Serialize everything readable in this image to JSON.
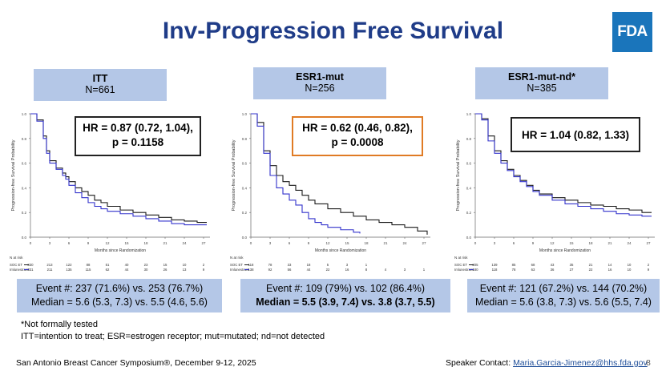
{
  "slide": {
    "title": "Inv-Progression Free Survival",
    "logo_text": "FDA",
    "note1": "*Not formally tested",
    "note2": "ITT=intention to treat; ESR=estrogen receptor; mut=mutated; nd=not detected",
    "footer_left": "San Antonio Breast Cancer Symposium®, December 9-12, 2025",
    "footer_contact_label": "Speaker Contact:",
    "footer_contact_email": "Maria.Garcia-Jimenez@hhs.fda.gov",
    "page_number": "8"
  },
  "panels": [
    {
      "name": "ITT",
      "n_label": "N=661",
      "hr_line1": "HR = 0.87 (0.72, 1.04),",
      "hr_line2": "p = 0.1158",
      "event_line1": "Event #: 237 (71.6%) vs. 253 (76.7%)",
      "event_line2": "Median = 5.6 (5.3, 7.3) vs. 5.5 (4.6, 5.6)"
    },
    {
      "name": "ESR1-mut",
      "n_label": "N=256",
      "hr_line1": "HR = 0.62 (0.46, 0.82),",
      "hr_line2": "p = 0.0008",
      "event_line1": "Event #: 109 (79%) vs. 102 (86.4%)",
      "event_line2": "Median = 5.5 (3.9, 7.4) vs. 3.8 (3.7, 5.5)"
    },
    {
      "name": "ESR1-mut-nd*",
      "n_label": "N=385",
      "hr_line1": "HR = 1.04 (0.82, 1.33)",
      "hr_line2": "",
      "event_line1": "Event #: 121 (67.2%) vs. 144 (70.2%)",
      "event_line2": "Median = 5.6 (3.8, 7.3) vs. 5.6 (5.5, 7.4)"
    }
  ],
  "colors": {
    "title": "#1f3c88",
    "box": "#b4c7e7",
    "soc_line": "#1a1a1a",
    "imlun_line": "#3333cc",
    "highlight_border": "#e07b24"
  },
  "chart_data": [
    {
      "type": "line",
      "title": "ITT",
      "xlabel": "Months since Randomization",
      "ylabel": "Progression-free Survival Probability",
      "xlim": [
        0,
        28
      ],
      "ylim": [
        0,
        1
      ],
      "xticks": [
        "0",
        "3",
        "6",
        "9",
        "12",
        "15",
        "18",
        "21",
        "24",
        "27"
      ],
      "yticks": [
        "0.0",
        "0.2",
        "0.4",
        "0.6",
        "0.8",
        "1.0"
      ],
      "risk_label": "N at risk",
      "series": [
        {
          "name": "SOC ET",
          "x": [
            0,
            1,
            2,
            2.5,
            3,
            4,
            5,
            5.5,
            6,
            7,
            8,
            9,
            10,
            11,
            12,
            14,
            16,
            18,
            20,
            22,
            24,
            26,
            27.5
          ],
          "y": [
            1,
            0.95,
            0.82,
            0.7,
            0.62,
            0.56,
            0.52,
            0.49,
            0.45,
            0.4,
            0.37,
            0.34,
            0.3,
            0.28,
            0.25,
            0.22,
            0.2,
            0.18,
            0.16,
            0.14,
            0.13,
            0.12,
            0.12
          ],
          "risk": [
            "330",
            "213",
            "122",
            "88",
            "51",
            "40",
            "23",
            "15",
            "10",
            "2"
          ]
        },
        {
          "name": "Imlunestrant",
          "x": [
            0,
            1,
            2,
            2.5,
            3,
            4,
            5,
            5.5,
            6,
            7,
            8,
            9,
            10,
            11,
            12,
            14,
            16,
            18,
            20,
            22,
            24,
            26,
            27.5
          ],
          "y": [
            1,
            0.94,
            0.8,
            0.68,
            0.6,
            0.55,
            0.5,
            0.47,
            0.42,
            0.36,
            0.32,
            0.28,
            0.25,
            0.23,
            0.21,
            0.19,
            0.17,
            0.15,
            0.13,
            0.11,
            0.1,
            0.1,
            0.1
          ],
          "risk": [
            "331",
            "211",
            "135",
            "115",
            "62",
            "44",
            "30",
            "26",
            "13",
            "9"
          ]
        }
      ]
    },
    {
      "type": "line",
      "title": "ESR1-mut",
      "xlabel": "Months since Randomization",
      "ylabel": "Progression-free Survival Probability",
      "xlim": [
        0,
        28
      ],
      "ylim": [
        0,
        1
      ],
      "xticks": [
        "0",
        "3",
        "6",
        "9",
        "12",
        "15",
        "18",
        "21",
        "24",
        "27"
      ],
      "yticks": [
        "0.0",
        "0.2",
        "0.4",
        "0.6",
        "0.8",
        "1.0"
      ],
      "risk_label": "N at risk",
      "series": [
        {
          "name": "SOC ET",
          "x": [
            0,
            1,
            2,
            3,
            4,
            5,
            6,
            7,
            8,
            9,
            10,
            12,
            14,
            16,
            18,
            20,
            22,
            24,
            26,
            27.5
          ],
          "y": [
            1,
            0.93,
            0.7,
            0.58,
            0.5,
            0.45,
            0.42,
            0.38,
            0.34,
            0.3,
            0.27,
            0.23,
            0.2,
            0.17,
            0.14,
            0.12,
            0.1,
            0.08,
            0.05,
            0.02
          ],
          "risk": [
            "118",
            "78",
            "33",
            "18",
            "5",
            "3",
            "1",
            "",
            "",
            ""
          ]
        },
        {
          "name": "Imlunestrant",
          "x": [
            0,
            1,
            2,
            3,
            4,
            5,
            6,
            7,
            8,
            9,
            10,
            11,
            12,
            14,
            16,
            17
          ],
          "y": [
            1,
            0.9,
            0.68,
            0.5,
            0.4,
            0.35,
            0.3,
            0.26,
            0.2,
            0.15,
            0.12,
            0.1,
            0.08,
            0.06,
            0.04,
            0.03
          ],
          "risk": [
            "138",
            "92",
            "56",
            "44",
            "22",
            "16",
            "8",
            "4",
            "3",
            "1"
          ]
        }
      ]
    },
    {
      "type": "line",
      "title": "ESR1-mut-nd*",
      "xlabel": "Months since Randomization",
      "ylabel": "Progression-free Survival Probability",
      "xlim": [
        0,
        28
      ],
      "ylim": [
        0,
        1
      ],
      "xticks": [
        "0",
        "3",
        "6",
        "9",
        "12",
        "15",
        "18",
        "21",
        "24",
        "27"
      ],
      "yticks": [
        "0.0",
        "0.2",
        "0.4",
        "0.6",
        "0.8",
        "1.0"
      ],
      "risk_label": "N at risk",
      "series": [
        {
          "name": "SOC ET",
          "x": [
            0,
            1,
            2,
            3,
            4,
            5,
            6,
            7,
            8,
            9,
            10,
            12,
            14,
            16,
            18,
            20,
            22,
            24,
            26,
            27.5
          ],
          "y": [
            1,
            0.96,
            0.82,
            0.7,
            0.62,
            0.55,
            0.5,
            0.46,
            0.42,
            0.38,
            0.35,
            0.32,
            0.3,
            0.28,
            0.26,
            0.25,
            0.23,
            0.22,
            0.2,
            0.2
          ],
          "risk": [
            "205",
            "139",
            "85",
            "68",
            "43",
            "35",
            "21",
            "14",
            "10",
            "2"
          ]
        },
        {
          "name": "Imlunestrant",
          "x": [
            0,
            1,
            2,
            3,
            4,
            5,
            6,
            7,
            8,
            9,
            10,
            12,
            14,
            16,
            18,
            20,
            22,
            24,
            26,
            27.5
          ],
          "y": [
            1,
            0.95,
            0.78,
            0.68,
            0.6,
            0.54,
            0.49,
            0.45,
            0.41,
            0.37,
            0.34,
            0.3,
            0.27,
            0.25,
            0.23,
            0.21,
            0.19,
            0.18,
            0.17,
            0.17
          ],
          "risk": [
            "180",
            "118",
            "78",
            "63",
            "36",
            "27",
            "22",
            "16",
            "10",
            "9"
          ]
        }
      ]
    }
  ]
}
